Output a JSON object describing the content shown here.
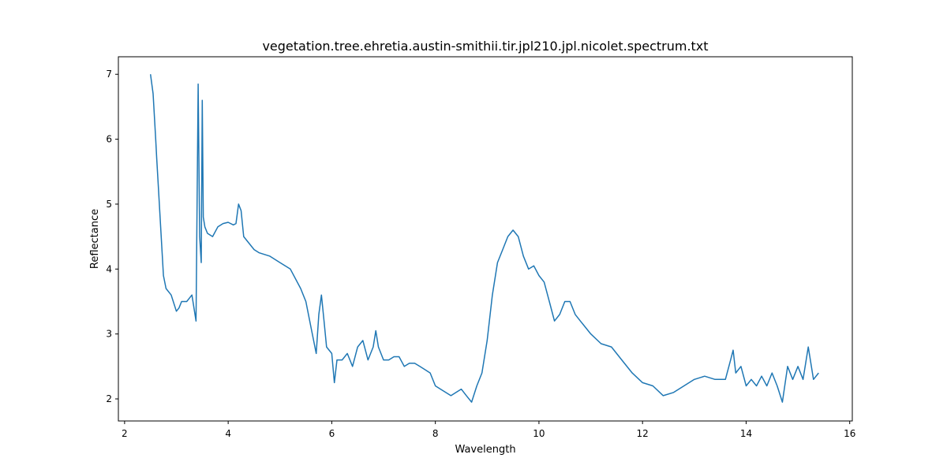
{
  "chart_data": {
    "type": "line",
    "title": "vegetation.tree.ehretia.austin-smithii.tir.jpl210.jpl.nicolet.spectrum.txt",
    "x_label": "Wavelength",
    "y_label": "Reflectance",
    "xlim": [
      1.88,
      16.05
    ],
    "ylim": [
      1.66,
      7.27
    ],
    "xticks": [
      2,
      4,
      6,
      8,
      10,
      12,
      14,
      16
    ],
    "yticks": [
      2,
      3,
      4,
      5,
      6,
      7
    ],
    "series": [
      {
        "color": "#1f77b4",
        "x": [
          2.5,
          2.55,
          2.6,
          2.62,
          2.65,
          2.7,
          2.75,
          2.8,
          2.9,
          3.0,
          3.05,
          3.1,
          3.2,
          3.3,
          3.38,
          3.42,
          3.45,
          3.48,
          3.5,
          3.52,
          3.55,
          3.6,
          3.7,
          3.8,
          3.9,
          4.0,
          4.1,
          4.15,
          4.2,
          4.25,
          4.3,
          4.4,
          4.5,
          4.6,
          4.8,
          5.0,
          5.2,
          5.4,
          5.5,
          5.6,
          5.7,
          5.75,
          5.8,
          5.85,
          5.9,
          6.0,
          6.05,
          6.1,
          6.2,
          6.3,
          6.4,
          6.5,
          6.6,
          6.7,
          6.8,
          6.85,
          6.9,
          7.0,
          7.1,
          7.2,
          7.3,
          7.4,
          7.5,
          7.6,
          7.7,
          7.8,
          7.9,
          8.0,
          8.1,
          8.2,
          8.3,
          8.4,
          8.5,
          8.6,
          8.7,
          8.8,
          8.9,
          9.0,
          9.1,
          9.2,
          9.3,
          9.4,
          9.5,
          9.6,
          9.7,
          9.8,
          9.9,
          10.0,
          10.1,
          10.2,
          10.3,
          10.4,
          10.5,
          10.6,
          10.7,
          10.8,
          10.9,
          11.0,
          11.2,
          11.4,
          11.6,
          11.8,
          12.0,
          12.2,
          12.4,
          12.6,
          12.8,
          13.0,
          13.2,
          13.4,
          13.6,
          13.7,
          13.75,
          13.8,
          13.9,
          14.0,
          14.1,
          14.2,
          14.3,
          14.4,
          14.5,
          14.6,
          14.7,
          14.8,
          14.9,
          15.0,
          15.1,
          15.2,
          15.3,
          15.4
        ],
        "values": [
          7.0,
          6.7,
          6.0,
          5.7,
          5.3,
          4.6,
          3.9,
          3.7,
          3.6,
          3.35,
          3.4,
          3.5,
          3.5,
          3.6,
          3.2,
          6.85,
          4.5,
          4.1,
          6.6,
          4.8,
          4.65,
          4.55,
          4.5,
          4.65,
          4.7,
          4.72,
          4.68,
          4.7,
          5.0,
          4.9,
          4.5,
          4.4,
          4.3,
          4.25,
          4.2,
          4.1,
          4.0,
          3.7,
          3.5,
          3.1,
          2.7,
          3.3,
          3.6,
          3.2,
          2.8,
          2.7,
          2.25,
          2.6,
          2.6,
          2.7,
          2.5,
          2.8,
          2.9,
          2.6,
          2.8,
          3.05,
          2.8,
          2.6,
          2.6,
          2.65,
          2.65,
          2.5,
          2.55,
          2.55,
          2.5,
          2.45,
          2.4,
          2.2,
          2.15,
          2.1,
          2.05,
          2.1,
          2.15,
          2.05,
          1.95,
          2.2,
          2.4,
          2.9,
          3.6,
          4.1,
          4.3,
          4.5,
          4.6,
          4.5,
          4.2,
          4.0,
          4.05,
          3.9,
          3.8,
          3.5,
          3.2,
          3.3,
          3.5,
          3.5,
          3.3,
          3.2,
          3.1,
          3.0,
          2.85,
          2.8,
          2.6,
          2.4,
          2.25,
          2.2,
          2.05,
          2.1,
          2.2,
          2.3,
          2.35,
          2.3,
          2.3,
          2.6,
          2.75,
          2.4,
          2.5,
          2.2,
          2.3,
          2.2,
          2.35,
          2.2,
          2.4,
          2.2,
          1.95,
          2.5,
          2.3,
          2.5,
          2.3,
          2.8,
          2.3,
          2.4
        ]
      }
    ]
  }
}
